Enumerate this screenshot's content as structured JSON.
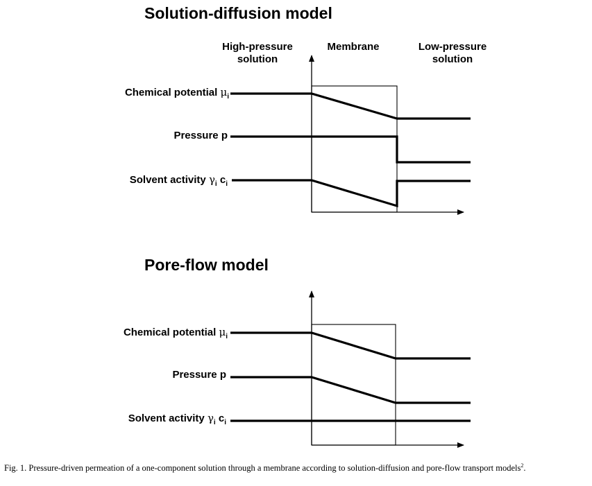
{
  "top_panel": {
    "title": "Solution-diffusion model",
    "col_high": "High-pressure\nsolution",
    "col_membrane": "Membrane",
    "col_low": "Low-pressure\nsolution",
    "rows": {
      "chemical_potential": {
        "label": "Chemical potential",
        "symbol": "μ",
        "sub": "i"
      },
      "pressure": {
        "label": "Pressure",
        "symbol": "p"
      },
      "solvent_activity": {
        "label": "Solvent activity",
        "symbol": "γ",
        "sub": "i",
        "symbol2": "c",
        "sub2": "i"
      }
    }
  },
  "bottom_panel": {
    "title": "Pore-flow model",
    "rows": {
      "chemical_potential": {
        "label": "Chemical potential",
        "symbol": "μ",
        "sub": "i"
      },
      "pressure": {
        "label": "Pressure",
        "symbol": "p"
      },
      "solvent_activity": {
        "label": "Solvent activity",
        "symbol": "γ",
        "sub": "i",
        "symbol2": "c",
        "sub2": "i"
      }
    }
  },
  "caption": {
    "text": "Fig. 1. Pressure-driven permeation of a one-component solution through a membrane according to solution-diffusion and pore-flow transport models",
    "ref": "2",
    "end": "."
  }
}
